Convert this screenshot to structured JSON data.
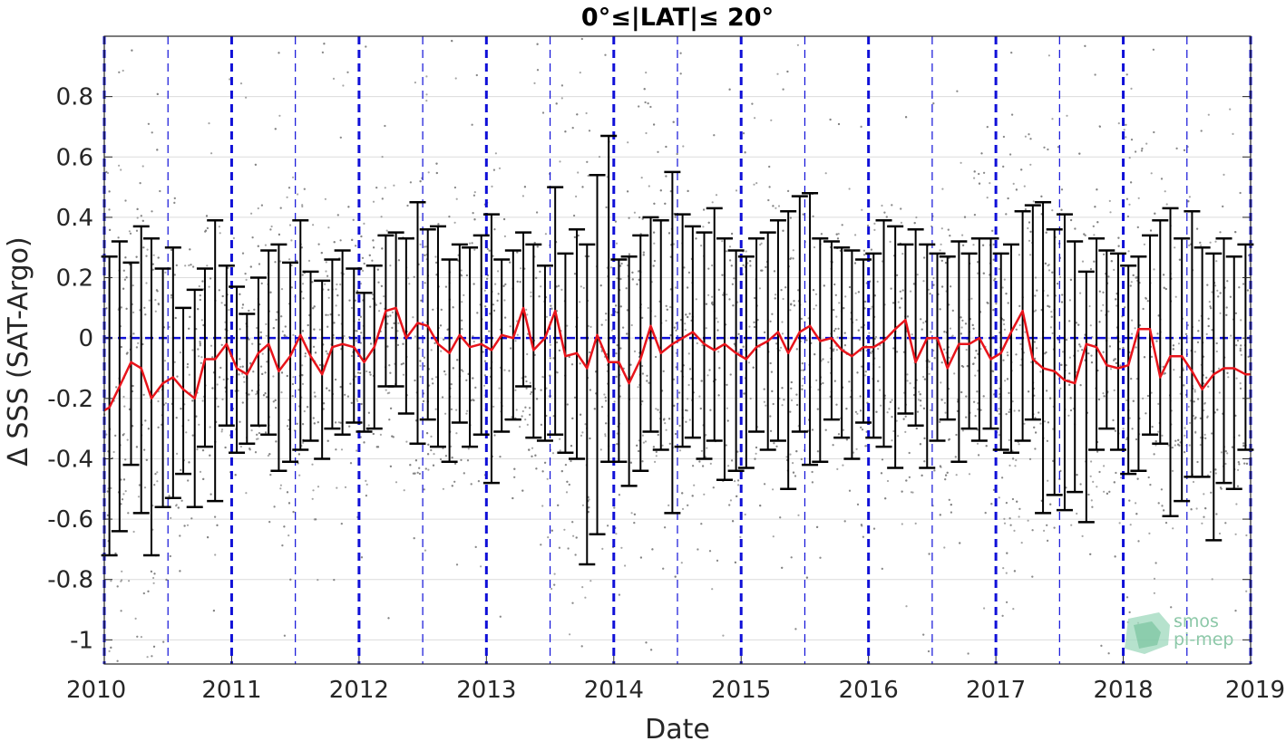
{
  "chart_data": {
    "type": "line",
    "title": "0°≤|LAT|≤ 20°",
    "xlabel": "Date",
    "ylabel": "Δ SSS (SAT-Argo)",
    "xlim": [
      2010,
      2019
    ],
    "ylim": [
      -1.08,
      1.0
    ],
    "x_ticks": [
      "2010",
      "2011",
      "2012",
      "2013",
      "2014",
      "2015",
      "2016",
      "2017",
      "2018",
      "2019"
    ],
    "y_ticks": [
      "0.8",
      "0.6",
      "0.4",
      "0.2",
      "0",
      "-0.2",
      "-0.4",
      "-0.6",
      "-0.8",
      "-1"
    ],
    "grid": true,
    "vertical_reference_lines": {
      "year_boundaries": "thick dashed blue",
      "mid_year": "thin dashed blue"
    },
    "zero_line": "dashed blue",
    "scatter_background": "grey points, individual match-ups",
    "series": [
      {
        "color": "#e8141b",
        "style": "line with error bars",
        "x": [
          2010.04,
          2010.12,
          2010.21,
          2010.29,
          2010.37,
          2010.46,
          2010.54,
          2010.62,
          2010.71,
          2010.79,
          2010.87,
          2010.96,
          2011.04,
          2011.12,
          2011.21,
          2011.29,
          2011.37,
          2011.46,
          2011.54,
          2011.62,
          2011.71,
          2011.79,
          2011.87,
          2011.96,
          2012.04,
          2012.12,
          2012.21,
          2012.29,
          2012.37,
          2012.46,
          2012.54,
          2012.62,
          2012.71,
          2012.79,
          2012.87,
          2012.96,
          2013.04,
          2013.12,
          2013.21,
          2013.29,
          2013.37,
          2013.46,
          2013.54,
          2013.62,
          2013.71,
          2013.79,
          2013.87,
          2013.96,
          2014.04,
          2014.12,
          2014.21,
          2014.29,
          2014.37,
          2014.46,
          2014.54,
          2014.62,
          2014.71,
          2014.79,
          2014.87,
          2014.96,
          2015.04,
          2015.12,
          2015.21,
          2015.29,
          2015.37,
          2015.46,
          2015.54,
          2015.62,
          2015.71,
          2015.79,
          2015.87,
          2015.96,
          2016.04,
          2016.12,
          2016.21,
          2016.29,
          2016.37,
          2016.46,
          2016.54,
          2016.62,
          2016.71,
          2016.79,
          2016.87,
          2016.96,
          2017.04,
          2017.12,
          2017.21,
          2017.29,
          2017.37,
          2017.46,
          2017.54,
          2017.62,
          2017.71,
          2017.79,
          2017.87,
          2017.96,
          2018.04,
          2018.12,
          2018.21,
          2018.29,
          2018.37,
          2018.46,
          2018.54,
          2018.62,
          2018.71,
          2018.79,
          2018.87,
          2018.96
        ],
        "y": [
          -0.23,
          -0.16,
          -0.08,
          -0.1,
          -0.2,
          -0.15,
          -0.13,
          -0.17,
          -0.2,
          -0.07,
          -0.07,
          -0.02,
          -0.1,
          -0.12,
          -0.05,
          -0.02,
          -0.11,
          -0.06,
          0.01,
          -0.06,
          -0.12,
          -0.03,
          -0.02,
          -0.03,
          -0.08,
          -0.03,
          0.09,
          0.1,
          0.0,
          0.05,
          0.04,
          -0.02,
          -0.05,
          0.01,
          -0.03,
          -0.02,
          -0.04,
          0.01,
          0.0,
          0.1,
          -0.04,
          0.0,
          0.09,
          -0.06,
          -0.05,
          -0.1,
          0.01,
          -0.08,
          -0.08,
          -0.15,
          -0.07,
          0.04,
          -0.05,
          -0.02,
          0.0,
          0.02,
          -0.02,
          -0.04,
          -0.02,
          -0.05,
          -0.07,
          -0.03,
          -0.01,
          0.02,
          -0.05,
          0.02,
          0.04,
          -0.01,
          0.0,
          -0.04,
          -0.06,
          -0.03,
          -0.03,
          -0.01,
          0.03,
          0.06,
          -0.08,
          0.0,
          0.0,
          -0.1,
          -0.02,
          -0.02,
          0.0,
          -0.07,
          -0.05,
          0.02,
          0.09,
          -0.07,
          -0.1,
          -0.11,
          -0.14,
          -0.15,
          -0.02,
          -0.03,
          -0.09,
          -0.1,
          -0.09,
          0.03,
          0.03,
          -0.13,
          -0.06,
          -0.06,
          -0.11,
          -0.17,
          -0.12,
          -0.1,
          -0.1,
          -0.12
        ],
        "y_upper": [
          0.27,
          0.32,
          0.25,
          0.37,
          0.33,
          0.23,
          0.3,
          0.1,
          0.16,
          0.23,
          0.39,
          0.24,
          0.17,
          0.08,
          0.2,
          0.29,
          0.31,
          0.25,
          0.39,
          0.22,
          0.19,
          0.26,
          0.29,
          0.23,
          0.15,
          0.24,
          0.34,
          0.35,
          0.33,
          0.45,
          0.36,
          0.37,
          0.26,
          0.31,
          0.3,
          0.34,
          0.41,
          0.26,
          0.29,
          0.35,
          0.31,
          0.24,
          0.5,
          0.28,
          0.36,
          0.31,
          0.54,
          0.67,
          0.26,
          0.27,
          0.34,
          0.4,
          0.39,
          0.55,
          0.41,
          0.37,
          0.35,
          0.43,
          0.33,
          0.29,
          0.27,
          0.33,
          0.35,
          0.39,
          0.42,
          0.47,
          0.48,
          0.33,
          0.32,
          0.3,
          0.29,
          0.26,
          0.28,
          0.39,
          0.37,
          0.31,
          0.36,
          0.31,
          0.28,
          0.27,
          0.32,
          0.28,
          0.33,
          0.33,
          0.28,
          0.31,
          0.42,
          0.44,
          0.45,
          0.36,
          0.41,
          0.32,
          0.22,
          0.33,
          0.29,
          0.28,
          0.24,
          0.27,
          0.34,
          0.39,
          0.43,
          0.33,
          0.42,
          0.3,
          0.28,
          0.33,
          0.27,
          0.31
        ],
        "y_lower": [
          -0.72,
          -0.64,
          -0.42,
          -0.58,
          -0.72,
          -0.56,
          -0.53,
          -0.45,
          -0.56,
          -0.36,
          -0.54,
          -0.29,
          -0.38,
          -0.35,
          -0.29,
          -0.32,
          -0.44,
          -0.41,
          -0.37,
          -0.34,
          -0.4,
          -0.3,
          -0.32,
          -0.28,
          -0.31,
          -0.3,
          -0.16,
          -0.16,
          -0.25,
          -0.35,
          -0.27,
          -0.36,
          -0.41,
          -0.28,
          -0.36,
          -0.32,
          -0.48,
          -0.31,
          -0.27,
          -0.16,
          -0.33,
          -0.34,
          -0.32,
          -0.38,
          -0.4,
          -0.75,
          -0.65,
          -0.41,
          -0.41,
          -0.49,
          -0.44,
          -0.31,
          -0.37,
          -0.58,
          -0.36,
          -0.33,
          -0.4,
          -0.34,
          -0.47,
          -0.44,
          -0.43,
          -0.31,
          -0.37,
          -0.34,
          -0.5,
          -0.31,
          -0.42,
          -0.41,
          -0.27,
          -0.33,
          -0.4,
          -0.28,
          -0.33,
          -0.36,
          -0.43,
          -0.25,
          -0.29,
          -0.43,
          -0.34,
          -0.27,
          -0.41,
          -0.3,
          -0.34,
          -0.3,
          -0.37,
          -0.38,
          -0.34,
          -0.27,
          -0.58,
          -0.52,
          -0.57,
          -0.51,
          -0.61,
          -0.37,
          -0.3,
          -0.37,
          -0.45,
          -0.44,
          -0.32,
          -0.35,
          -0.59,
          -0.54,
          -0.46,
          -0.46,
          -0.67,
          -0.48,
          -0.5,
          -0.37
        ]
      }
    ]
  },
  "watermark": {
    "line1": "smos",
    "line2": "pi-mep"
  },
  "colors": {
    "mean_line": "#e8141b",
    "error_bars": "#000000",
    "scatter": "#7f7f7f",
    "reference_lines": "#1010d8",
    "watermark": "#8cc8a8"
  }
}
